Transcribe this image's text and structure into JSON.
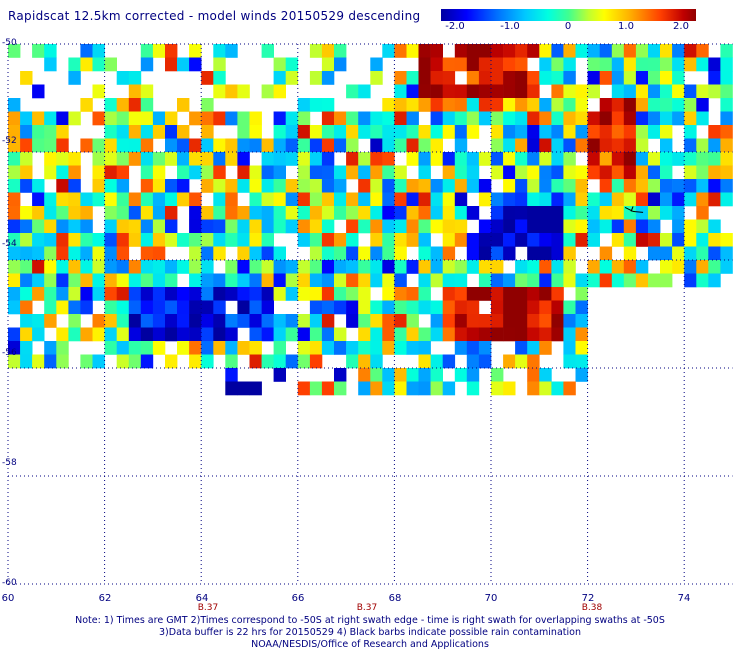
{
  "title": "Rapidscat 12.5km corrected - model winds 20150529 descending",
  "colorbar": {
    "labels": [
      "-2.0",
      "-1.0",
      "0",
      "1.0",
      "2.0"
    ],
    "range": [
      -2.0,
      2.0
    ],
    "colors": [
      "#0000a0",
      "#0000ff",
      "#00c8ff",
      "#40ff90",
      "#ffff00",
      "#ff4000",
      "#900000"
    ]
  },
  "chart_data": {
    "type": "heatmap",
    "title": "Rapidscat 12.5km corrected - model winds 20150529 descending",
    "xlim": [
      60,
      75
    ],
    "ylim": [
      -60,
      -50
    ],
    "grid": true,
    "x_ticks": [
      "60",
      "62",
      "64",
      "66",
      "68",
      "70",
      "72",
      "74"
    ],
    "y_ticks": [
      "-50",
      "-52",
      "-54",
      "-56",
      "-58",
      "-60"
    ],
    "pass_labels": [
      {
        "x": 64,
        "text": "B.37"
      },
      {
        "x": 67.3,
        "text": "B.37"
      },
      {
        "x": 72,
        "text": "B.38"
      }
    ],
    "cell_size_deg": 0.25,
    "regions": [
      {
        "lon": [
          60.0,
          72.0
        ],
        "lat": [
          -56.0,
          -50.0
        ],
        "value": 0.0
      },
      {
        "lon": [
          64.5,
          72.0
        ],
        "lat": [
          -56.5,
          -56.0
        ],
        "value": 0.0
      },
      {
        "lon": [
          72.0,
          75.0
        ],
        "lat": [
          -54.5,
          -50.0
        ],
        "value": 0.0
      },
      {
        "lon": [
          68.5,
          71.0
        ],
        "lat": [
          -51.0,
          -50.0
        ],
        "value": 1.8
      },
      {
        "lon": [
          69.0,
          71.5
        ],
        "lat": [
          -55.5,
          -54.5
        ],
        "value": 1.9
      },
      {
        "lon": [
          72.0,
          73.0
        ],
        "lat": [
          -52.5,
          -51.0
        ],
        "value": 1.7
      },
      {
        "lon": [
          69.5,
          71.5
        ],
        "lat": [
          -54.0,
          -53.0
        ],
        "value": -1.8
      },
      {
        "lon": [
          62.5,
          65.5
        ],
        "lat": [
          -55.5,
          -54.5
        ],
        "value": -1.6
      },
      {
        "lon": [
          64.0,
          66.0
        ],
        "lat": [
          -56.5,
          -56.0
        ],
        "value": -1.8
      }
    ],
    "notes": [
      "Note: 1) Times are GMT 2)Times correspond to -50S at right swath edge - time is right swath for overlapping swaths at -50S",
      "3)Data buffer is 22 hrs for 20150529 4) Black barbs indicate possible rain contamination",
      "NOAA/NESDIS/Office of Research and Applications"
    ]
  }
}
